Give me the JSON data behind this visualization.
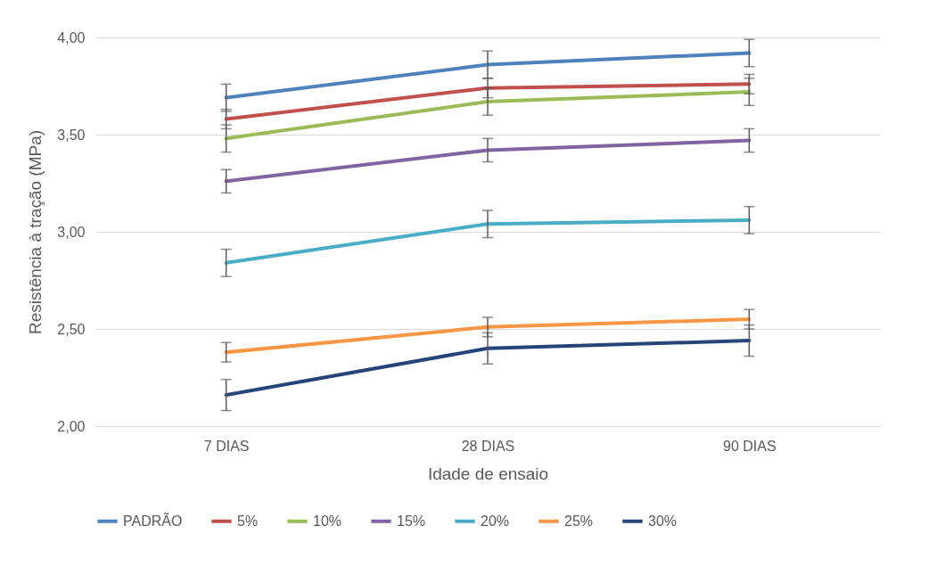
{
  "chart_data": {
    "type": "line",
    "xlabel": "Idade de ensaio",
    "ylabel": "Resistência à tração (MPa)",
    "categories": [
      "7 DIAS",
      "28 DIAS",
      "90 DIAS"
    ],
    "series": [
      {
        "name": "PADRÃO",
        "color": "#4f81bd",
        "values": [
          3.69,
          3.86,
          3.92
        ],
        "errors": [
          0.07,
          0.07,
          0.07
        ]
      },
      {
        "name": "5%",
        "color": "#c0504d",
        "values": [
          3.58,
          3.74,
          3.76
        ],
        "errors": [
          0.05,
          0.05,
          0.05
        ]
      },
      {
        "name": "10%",
        "color": "#9bbb59",
        "values": [
          3.48,
          3.67,
          3.72
        ],
        "errors": [
          0.07,
          0.07,
          0.07
        ]
      },
      {
        "name": "15%",
        "color": "#8064a2",
        "values": [
          3.26,
          3.42,
          3.47
        ],
        "errors": [
          0.06,
          0.06,
          0.06
        ]
      },
      {
        "name": "20%",
        "color": "#4bacc6",
        "values": [
          2.84,
          3.04,
          3.06
        ],
        "errors": [
          0.07,
          0.07,
          0.07
        ]
      },
      {
        "name": "25%",
        "color": "#f79646",
        "values": [
          2.38,
          2.51,
          2.55
        ],
        "errors": [
          0.05,
          0.05,
          0.05
        ]
      },
      {
        "name": "30%",
        "color": "#264478",
        "values": [
          2.16,
          2.4,
          2.44
        ],
        "errors": [
          0.08,
          0.08,
          0.08
        ]
      }
    ],
    "ylim": [
      2,
      4
    ],
    "yticks": [
      {
        "value": 2,
        "label": "2,00"
      },
      {
        "value": 2.5,
        "label": "2,50"
      },
      {
        "value": 3,
        "label": "3,00"
      },
      {
        "value": 3.5,
        "label": "3,50"
      },
      {
        "value": 4,
        "label": "4,00"
      }
    ],
    "grid": "y",
    "legend": "bottom"
  }
}
